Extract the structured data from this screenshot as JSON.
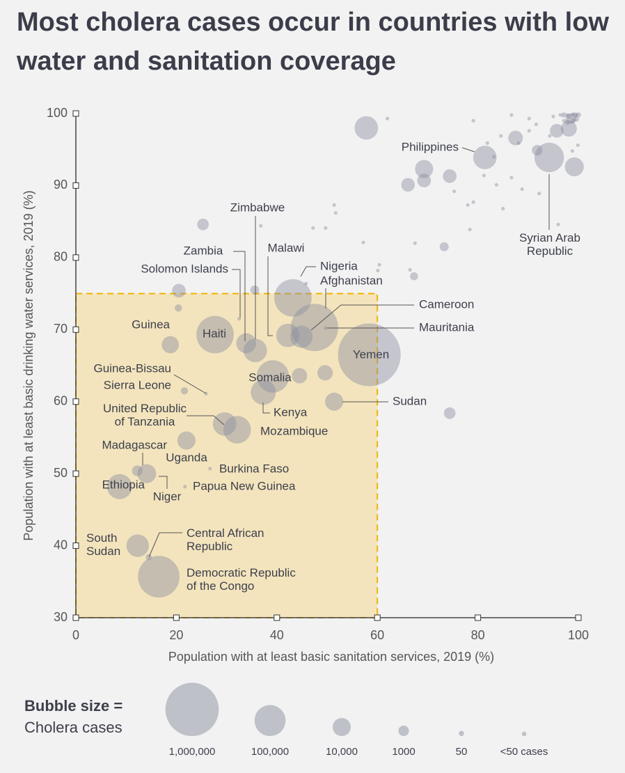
{
  "chart_data": {
    "type": "scatter",
    "title": "Most cholera cases occur in countries with low water and sanitation coverage",
    "x_label": "Population with at least basic sanitation services, 2019 (%)",
    "y_label": "Population with at least basic drinking water services, 2019 (%)",
    "xlim": [
      0,
      100
    ],
    "ylim": [
      30,
      100
    ],
    "xticks": [
      0,
      20,
      40,
      60,
      80,
      100
    ],
    "yticks": [
      30,
      40,
      50,
      60,
      70,
      80,
      90,
      100
    ],
    "grid": false,
    "color": "#8c8fa0",
    "highlight": {
      "xlim": [
        0,
        60
      ],
      "ylim": [
        30,
        75
      ],
      "color": "#f0b400"
    },
    "legend": {
      "title": "Bubble size =",
      "subtitle": "Cholera cases",
      "sizes": [
        {
          "value": 1000000,
          "label": "1,000,000"
        },
        {
          "value": 100000,
          "label": "100,000"
        },
        {
          "value": 10000,
          "label": "10,000"
        },
        1000,
        50,
        {
          "value": 25,
          "label": "<50 cases"
        }
      ]
    },
    "points": [
      {
        "label": "Yemen",
        "x": 58.4,
        "y": 66.5,
        "size": 2000000
      },
      {
        "label": "Sudan",
        "x": 51.4,
        "y": 60.0,
        "size": 10000
      },
      {
        "label": "Somalia",
        "x": 39.2,
        "y": 63.5,
        "size": 120000
      },
      {
        "label": "Kenya",
        "x": 37.3,
        "y": 61.3,
        "size": 40000
      },
      {
        "label": "Mozambique",
        "x": 32.1,
        "y": 56.1,
        "size": 60000
      },
      {
        "label": "United Republic\nof Tanzania",
        "x": 29.6,
        "y": 56.9,
        "size": 30000
      },
      {
        "label": "Cameroon",
        "x": 44.9,
        "y": 69.0,
        "size": 24000
      },
      {
        "label": "Afghanistan",
        "x": 47.5,
        "y": 70.3,
        "size": 600000
      },
      {
        "label": "Nigeria",
        "x": 43.2,
        "y": 74.4,
        "size": 220000
      },
      {
        "label": "Mauritania",
        "x": 49.7,
        "y": 70.2,
        "size": 10
      },
      {
        "label": "Malawi",
        "x": 42.2,
        "y": 69.2,
        "size": 30000
      },
      {
        "label": "Zimbabwe",
        "x": 35.7,
        "y": 67.1,
        "size": 30000
      },
      {
        "label": "Zambia",
        "x": 33.9,
        "y": 68.1,
        "size": 15000
      },
      {
        "label": "Solomon Islands",
        "x": 32.5,
        "y": 71.5,
        "size": 10
      },
      {
        "label": "Haiti",
        "x": 27.7,
        "y": 69.3,
        "size": 220000
      },
      {
        "label": "Guinea",
        "x": 18.8,
        "y": 67.9,
        "size": 8000
      },
      {
        "label": "Guinea-Bissau",
        "x": 25.9,
        "y": 61.1,
        "size": 10
      },
      {
        "label": "Sierra Leone",
        "x": 21.6,
        "y": 61.5,
        "size": 200
      },
      {
        "label": "Madagascar",
        "x": 12.2,
        "y": 50.4,
        "size": 1000
      },
      {
        "label": "Uganda",
        "x": 22.0,
        "y": 54.6,
        "size": 10000
      },
      {
        "label": "Burkina Faso",
        "x": 26.7,
        "y": 50.7,
        "size": 10
      },
      {
        "label": "Papua New Guinea",
        "x": 21.7,
        "y": 48.2,
        "size": 10
      },
      {
        "label": "Niger",
        "x": 14.1,
        "y": 50.0,
        "size": 12000
      },
      {
        "label": "Ethiopia",
        "x": 8.7,
        "y": 48.2,
        "size": 40000
      },
      {
        "label": "South\nSudan",
        "x": 12.3,
        "y": 40.0,
        "size": 25000
      },
      {
        "label": "Central African\nRepublic",
        "x": 14.5,
        "y": 38.4,
        "size": 100
      },
      {
        "label": "Democratic Republic\nof the Congo",
        "x": 16.5,
        "y": 35.7,
        "size": 350000
      },
      {
        "label": "Philippines",
        "x": 81.4,
        "y": 93.9,
        "size": 30000
      },
      {
        "label": "Syrian Arab\nRepublic",
        "x": 94.2,
        "y": 93.9,
        "size": 80000
      },
      {
        "x": 57.8,
        "y": 98.0,
        "size": 30000
      },
      {
        "x": 69.3,
        "y": 92.3,
        "size": 10000
      },
      {
        "x": 69.3,
        "y": 90.7,
        "size": 3000
      },
      {
        "x": 66.1,
        "y": 90.1,
        "size": 3000
      },
      {
        "x": 74.4,
        "y": 91.3,
        "size": 3000
      },
      {
        "x": 99.2,
        "y": 92.6,
        "size": 12000
      },
      {
        "x": 87.5,
        "y": 96.6,
        "size": 4000
      },
      {
        "x": 95.7,
        "y": 97.6,
        "size": 3000
      },
      {
        "x": 98.1,
        "y": 97.9,
        "size": 6000
      },
      {
        "x": 98.5,
        "y": 99.3,
        "size": 1000
      },
      {
        "x": 91.8,
        "y": 94.9,
        "size": 1000
      },
      {
        "x": 25.3,
        "y": 84.6,
        "size": 1500
      },
      {
        "x": 20.5,
        "y": 75.4,
        "size": 3000
      },
      {
        "x": 35.6,
        "y": 75.5,
        "size": 500
      },
      {
        "x": 73.3,
        "y": 81.5,
        "size": 500
      },
      {
        "x": 74.4,
        "y": 58.4,
        "size": 1500
      },
      {
        "x": 49.6,
        "y": 64.0,
        "size": 5000
      },
      {
        "x": 44.5,
        "y": 63.6,
        "size": 5000
      },
      {
        "x": 20.4,
        "y": 73.0,
        "size": 200
      },
      {
        "x": 67.3,
        "y": 77.4,
        "size": 300
      },
      {
        "x": 97.1,
        "y": 99.8,
        "size": 50
      },
      {
        "x": 98.2,
        "y": 99.6,
        "size": 50
      },
      {
        "x": 99.3,
        "y": 99.8,
        "size": 50
      },
      {
        "x": 99.6,
        "y": 99.2,
        "size": 50
      },
      {
        "x": 98.9,
        "y": 99.0,
        "size": 50
      },
      {
        "x": 97.8,
        "y": 98.8,
        "size": 50
      },
      {
        "x": 100,
        "y": 99.8,
        "size": 50
      },
      {
        "x": 86.7,
        "y": 99.8,
        "size": 10
      },
      {
        "x": 90.2,
        "y": 99.3,
        "size": 10
      },
      {
        "x": 91.6,
        "y": 98.5,
        "size": 10
      },
      {
        "x": 95.0,
        "y": 99.6,
        "size": 10
      },
      {
        "x": 96.4,
        "y": 99.8,
        "size": 10
      },
      {
        "x": 97.8,
        "y": 99.8,
        "size": 10
      },
      {
        "x": 98.9,
        "y": 99.9,
        "size": 10
      },
      {
        "x": 99.6,
        "y": 99.8,
        "size": 10
      },
      {
        "x": 97.1,
        "y": 99.0,
        "size": 10
      },
      {
        "x": 94.3,
        "y": 96.9,
        "size": 10
      },
      {
        "x": 90.2,
        "y": 97.6,
        "size": 10
      },
      {
        "x": 88.1,
        "y": 95.9,
        "size": 10
      },
      {
        "x": 99.9,
        "y": 95.6,
        "size": 10
      },
      {
        "x": 98.8,
        "y": 94.8,
        "size": 10
      },
      {
        "x": 83.2,
        "y": 94.0,
        "size": 10
      },
      {
        "x": 79.1,
        "y": 99.0,
        "size": 10
      },
      {
        "x": 62.0,
        "y": 99.3,
        "size": 10
      },
      {
        "x": 78.0,
        "y": 87.3,
        "size": 10
      },
      {
        "x": 75.3,
        "y": 89.2,
        "size": 10
      },
      {
        "x": 86.7,
        "y": 91.1,
        "size": 10
      },
      {
        "x": 88.8,
        "y": 89.5,
        "size": 10
      },
      {
        "x": 92.2,
        "y": 88.9,
        "size": 10
      },
      {
        "x": 83.7,
        "y": 90.1,
        "size": 10
      },
      {
        "x": 85.0,
        "y": 86.8,
        "size": 10
      },
      {
        "x": 81.2,
        "y": 91.4,
        "size": 10
      },
      {
        "x": 79.1,
        "y": 87.7,
        "size": 10
      },
      {
        "x": 96.0,
        "y": 84.6,
        "size": 10
      },
      {
        "x": 45.8,
        "y": 76.4,
        "size": 10
      },
      {
        "x": 49.7,
        "y": 84.1,
        "size": 10
      },
      {
        "x": 51.4,
        "y": 87.3,
        "size": 10
      },
      {
        "x": 51.7,
        "y": 86.2,
        "size": 10
      },
      {
        "x": 36.8,
        "y": 84.4,
        "size": 10
      },
      {
        "x": 47.2,
        "y": 84.1,
        "size": 10
      },
      {
        "x": 57.2,
        "y": 82.1,
        "size": 10
      },
      {
        "x": 60.4,
        "y": 79.0,
        "size": 10
      },
      {
        "x": 60.1,
        "y": 78.2,
        "size": 10
      },
      {
        "x": 66.5,
        "y": 78.3,
        "size": 10
      },
      {
        "x": 67.5,
        "y": 82.0,
        "size": 10
      },
      {
        "x": 78.4,
        "y": 83.9,
        "size": 10
      },
      {
        "x": 81.9,
        "y": 95.9,
        "size": 10
      },
      {
        "x": 84.6,
        "y": 96.9,
        "size": 10
      }
    ]
  }
}
